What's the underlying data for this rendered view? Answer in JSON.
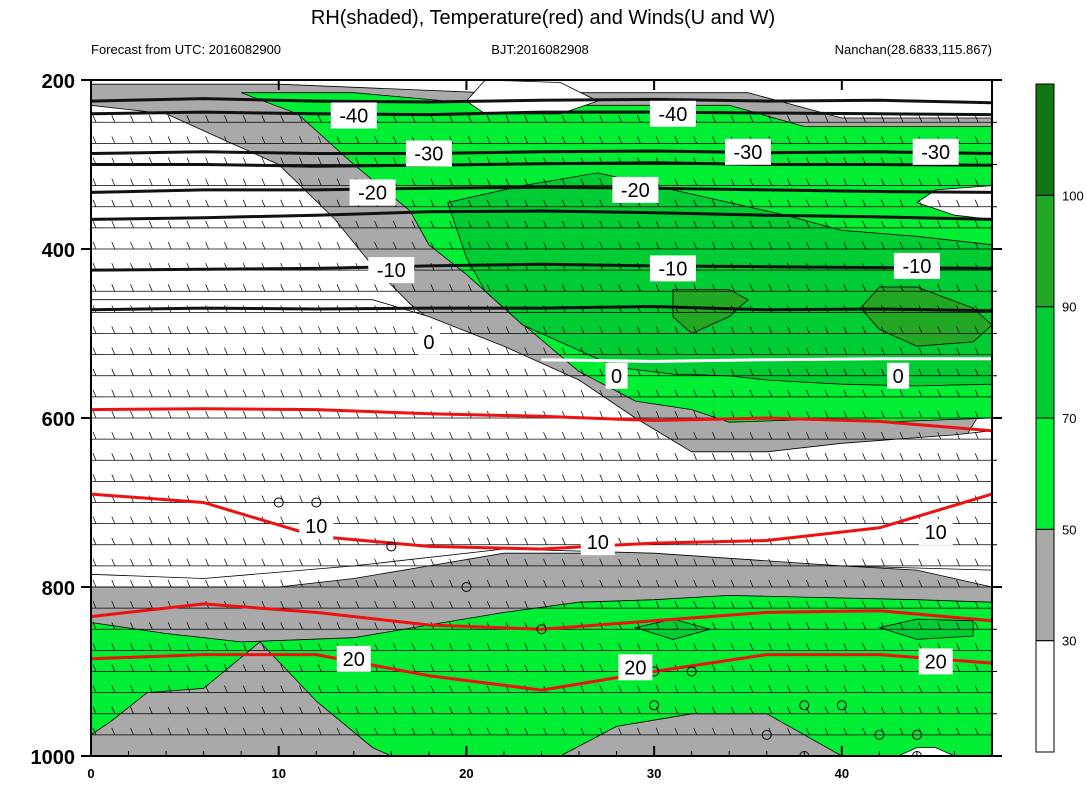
{
  "chart_data": {
    "type": "heatmap",
    "title": "RH(shaded), Temperature(red) and Winds(U and W)",
    "subtitle_left": "Forecast from UTC: 2016082900",
    "subtitle_center": "BJT:2016082908",
    "subtitle_right": "Nanchan(28.6833,115.867)",
    "x_axis": {
      "ticks": [
        0,
        10,
        20,
        30,
        40
      ],
      "range": [
        0,
        48
      ]
    },
    "y_axis": {
      "ticks": [
        200,
        400,
        600,
        800,
        1000
      ],
      "range": [
        200,
        1000
      ],
      "inverted": true
    },
    "colorbar": {
      "labels": [
        "30",
        "50",
        "70",
        "90",
        "100"
      ],
      "bins": [
        {
          "min": 0,
          "max": 30,
          "color": "#ffffff"
        },
        {
          "min": 30,
          "max": 50,
          "color": "#a9a9a9"
        },
        {
          "min": 50,
          "max": 70,
          "color": "#00ee33"
        },
        {
          "min": 70,
          "max": 90,
          "color": "#00cc33"
        },
        {
          "min": 90,
          "max": 100,
          "color": "#22a822"
        },
        {
          "min": 100,
          "max": 110,
          "color": "#117711"
        }
      ]
    },
    "rh_regions": [
      {
        "rh": 40,
        "points": [
          [
            0,
            800
          ],
          [
            6,
            800
          ],
          [
            10,
            800
          ],
          [
            14,
            790
          ],
          [
            18,
            775
          ],
          [
            22,
            760
          ],
          [
            26,
            760
          ],
          [
            30,
            755
          ],
          [
            36,
            760
          ],
          [
            40,
            775
          ],
          [
            44,
            780
          ],
          [
            48,
            800
          ],
          [
            48,
            1000
          ],
          [
            0,
            1000
          ]
        ]
      },
      {
        "rh": 60,
        "points": [
          [
            0,
            842
          ],
          [
            4,
            855
          ],
          [
            8,
            865
          ],
          [
            14,
            860
          ],
          [
            18,
            845
          ],
          [
            22,
            830
          ],
          [
            26,
            818
          ],
          [
            30,
            815
          ],
          [
            34,
            810
          ],
          [
            38,
            812
          ],
          [
            44,
            815
          ],
          [
            48,
            818
          ],
          [
            48,
            1000
          ],
          [
            40,
            1000
          ],
          [
            36,
            950
          ],
          [
            32,
            950
          ],
          [
            28,
            965
          ],
          [
            25,
            1000
          ],
          [
            16,
            1000
          ],
          [
            15,
            990
          ],
          [
            12,
            935
          ],
          [
            9,
            865
          ],
          [
            6,
            920
          ],
          [
            3,
            925
          ],
          [
            1,
            960
          ],
          [
            0,
            975
          ]
        ]
      },
      {
        "rh": 40,
        "points": [
          [
            21,
            215
          ],
          [
            35,
            215
          ],
          [
            40,
            245
          ],
          [
            48,
            245
          ],
          [
            48,
            570
          ],
          [
            46,
            645
          ],
          [
            40,
            640
          ],
          [
            34,
            650
          ],
          [
            29,
            650
          ],
          [
            26,
            600
          ],
          [
            22,
            540
          ],
          [
            19,
            500
          ],
          [
            17,
            465
          ],
          [
            15,
            420
          ],
          [
            13,
            365
          ],
          [
            10,
            300
          ],
          [
            7,
            270
          ],
          [
            4,
            240
          ],
          [
            0,
            230
          ],
          [
            0,
            205
          ],
          [
            10,
            205
          ]
        ]
      },
      {
        "rh": 60,
        "points": [
          [
            22,
            230
          ],
          [
            34,
            230
          ],
          [
            38,
            255
          ],
          [
            48,
            255
          ],
          [
            48,
            600
          ],
          [
            42,
            605
          ],
          [
            38,
            602
          ],
          [
            34,
            605
          ],
          [
            32,
            590
          ],
          [
            29,
            580
          ],
          [
            26,
            545
          ],
          [
            22,
            470
          ],
          [
            20,
            430
          ],
          [
            18,
            395
          ],
          [
            17,
            355
          ],
          [
            14,
            300
          ],
          [
            11,
            240
          ],
          [
            8,
            215
          ],
          [
            14,
            215
          ],
          [
            19,
            225
          ]
        ]
      },
      {
        "rh": 80,
        "points": [
          [
            19,
            345
          ],
          [
            23,
            325
          ],
          [
            27,
            310
          ],
          [
            31,
            330
          ],
          [
            34,
            345
          ],
          [
            37,
            360
          ],
          [
            40,
            378
          ],
          [
            44,
            385
          ],
          [
            48,
            395
          ],
          [
            48,
            560
          ],
          [
            44,
            562
          ],
          [
            40,
            560
          ],
          [
            36,
            555
          ],
          [
            34,
            550
          ],
          [
            31,
            548
          ],
          [
            28,
            540
          ],
          [
            26,
            520
          ],
          [
            23,
            490
          ],
          [
            21,
            450
          ],
          [
            20,
            410
          ]
        ]
      },
      {
        "rh": 95,
        "points": [
          [
            31,
            448
          ],
          [
            34,
            448
          ],
          [
            35,
            460
          ],
          [
            34,
            480
          ],
          [
            32,
            500
          ],
          [
            31,
            480
          ]
        ]
      },
      {
        "rh": 95,
        "points": [
          [
            42,
            445
          ],
          [
            44,
            445
          ],
          [
            47,
            470
          ],
          [
            48,
            490
          ],
          [
            47,
            510
          ],
          [
            44,
            515
          ],
          [
            42,
            495
          ],
          [
            41,
            470
          ]
        ]
      },
      {
        "rh": 20,
        "points": [
          [
            21,
            200
          ],
          [
            25,
            203
          ],
          [
            27,
            225
          ],
          [
            25,
            240
          ],
          [
            21,
            240
          ],
          [
            20,
            225
          ]
        ]
      },
      {
        "rh": 20,
        "points": [
          [
            45,
            330
          ],
          [
            48,
            325
          ],
          [
            48,
            365
          ],
          [
            46,
            360
          ],
          [
            44,
            345
          ]
        ]
      },
      {
        "rh": 20,
        "points": [
          [
            0,
            460
          ],
          [
            15,
            460
          ],
          [
            18,
            480
          ],
          [
            22,
            515
          ],
          [
            26,
            555
          ],
          [
            29,
            600
          ],
          [
            32,
            640
          ],
          [
            36,
            640
          ],
          [
            40,
            630
          ],
          [
            46,
            620
          ],
          [
            48,
            615
          ],
          [
            48,
            780
          ],
          [
            40,
            775
          ],
          [
            30,
            760
          ],
          [
            22,
            755
          ],
          [
            14,
            775
          ],
          [
            6,
            790
          ],
          [
            0,
            785
          ]
        ]
      },
      {
        "rh": 20,
        "points": [
          [
            43,
            1000
          ],
          [
            44,
            990
          ],
          [
            45,
            990
          ],
          [
            46,
            1000
          ]
        ]
      },
      {
        "rh": 80,
        "points": [
          [
            29,
            848
          ],
          [
            31,
            838
          ],
          [
            33,
            850
          ],
          [
            31,
            862
          ]
        ]
      },
      {
        "rh": 80,
        "points": [
          [
            42,
            848
          ],
          [
            44,
            838
          ],
          [
            47,
            840
          ],
          [
            47,
            858
          ],
          [
            44,
            862
          ]
        ]
      }
    ],
    "wind_barb_levels": [
      250,
      275,
      300,
      325,
      350,
      375,
      400,
      425,
      450,
      475,
      500,
      525,
      550,
      575,
      600,
      625,
      650,
      675,
      700,
      725,
      750,
      775,
      800,
      825,
      850,
      875,
      900,
      925,
      950,
      975
    ],
    "temperature_contours": [
      {
        "label": "-40",
        "y": [
          225,
          222,
          225,
          226,
          224,
          223,
          225,
          224,
          227
        ]
      },
      {
        "label": "-40",
        "y": [
          240,
          238,
          240,
          241,
          238,
          238,
          239,
          240,
          241
        ]
      },
      {
        "label": "-30",
        "y": [
          287,
          285,
          287,
          287,
          285,
          284,
          286,
          285,
          287
        ]
      },
      {
        "label": "-30",
        "y": [
          300,
          300,
          302,
          301,
          299,
          298,
          300,
          300,
          301
        ]
      },
      {
        "label": "-20",
        "y": [
          333,
          330,
          330,
          328,
          327,
          328,
          330,
          332,
          333
        ]
      },
      {
        "label": "-20",
        "y": [
          365,
          363,
          360,
          356,
          355,
          357,
          360,
          362,
          365
        ]
      },
      {
        "label": "-10",
        "y": [
          425,
          424,
          423,
          420,
          418,
          420,
          421,
          422,
          423
        ]
      },
      {
        "label": "-10",
        "y": [
          472,
          470,
          471,
          470,
          470,
          468,
          472,
          471,
          473
        ]
      },
      {
        "label": "0",
        "y": [
          null,
          null,
          null,
          null,
          531,
          533,
          531,
          530,
          530
        ]
      },
      {
        "label": "0",
        "y": [
          590,
          589,
          590,
          595,
          598,
          603,
          600,
          604,
          615
        ]
      },
      {
        "label": "10",
        "y": [
          690,
          700,
          740,
          752,
          755,
          748,
          745,
          730,
          690
        ]
      },
      {
        "label": "20",
        "y": [
          835,
          820,
          830,
          845,
          850,
          840,
          830,
          828,
          840
        ]
      },
      {
        "label": "20",
        "y": [
          885,
          880,
          880,
          905,
          922,
          900,
          880,
          880,
          890
        ]
      }
    ],
    "contour_labels": [
      {
        "text": "-40",
        "x": 14,
        "y": 242
      },
      {
        "text": "-40",
        "x": 31,
        "y": 240
      },
      {
        "text": "-30",
        "x": 18,
        "y": 287
      },
      {
        "text": "-30",
        "x": 35,
        "y": 285
      },
      {
        "text": "-30",
        "x": 45,
        "y": 285
      },
      {
        "text": "-20",
        "x": 15,
        "y": 333
      },
      {
        "text": "-20",
        "x": 29,
        "y": 330
      },
      {
        "text": "-10",
        "x": 16,
        "y": 425
      },
      {
        "text": "-10",
        "x": 31,
        "y": 423
      },
      {
        "text": "-10",
        "x": 44,
        "y": 420
      },
      {
        "text": "0",
        "x": 18,
        "y": 510
      },
      {
        "text": "0",
        "x": 28,
        "y": 550
      },
      {
        "text": "0",
        "x": 43,
        "y": 550
      },
      {
        "text": "10",
        "x": 12,
        "y": 728
      },
      {
        "text": "10",
        "x": 27,
        "y": 747
      },
      {
        "text": "10",
        "x": 45,
        "y": 735
      },
      {
        "text": "20",
        "x": 14,
        "y": 885
      },
      {
        "text": "20",
        "x": 29,
        "y": 895
      },
      {
        "text": "20",
        "x": 45,
        "y": 888
      }
    ],
    "calm_markers": [
      {
        "x": 10,
        "y": 700
      },
      {
        "x": 12,
        "y": 700
      },
      {
        "x": 16,
        "y": 752
      },
      {
        "x": 20,
        "y": 800
      },
      {
        "x": 24,
        "y": 850
      },
      {
        "x": 30,
        "y": 900
      },
      {
        "x": 32,
        "y": 900
      },
      {
        "x": 30,
        "y": 940
      },
      {
        "x": 38,
        "y": 940
      },
      {
        "x": 40,
        "y": 940
      },
      {
        "x": 36,
        "y": 975
      },
      {
        "x": 42,
        "y": 975
      },
      {
        "x": 44,
        "y": 975
      },
      {
        "x": 38,
        "y": 1000
      },
      {
        "x": 44,
        "y": 1000
      }
    ]
  }
}
